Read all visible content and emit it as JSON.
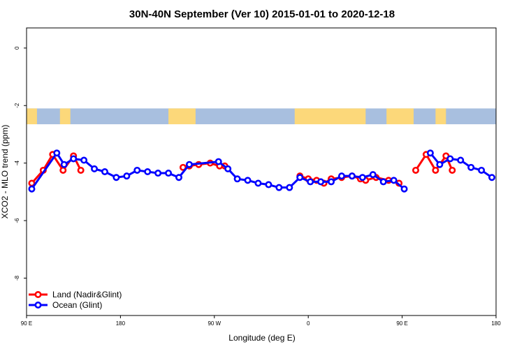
{
  "chart_data": {
    "type": "line",
    "title": "30N-40N September (Ver 10)   2015-01-01 to 2020-12-18",
    "xlabel": "Longitude (deg E)",
    "ylabel": "XCO2 - MLO trend (ppm)",
    "xlim": [
      90,
      540
    ],
    "ylim": [
      -9.3,
      0.7
    ],
    "x_ticks": [
      {
        "value": 90,
        "label": "90 E"
      },
      {
        "value": 180,
        "label": "180"
      },
      {
        "value": 270,
        "label": "90 W"
      },
      {
        "value": 360,
        "label": "0"
      },
      {
        "value": 450,
        "label": "90 E"
      },
      {
        "value": 540,
        "label": "180"
      }
    ],
    "y_ticks": [
      {
        "value": 0,
        "label": "0"
      },
      {
        "value": -2,
        "label": "-2"
      },
      {
        "value": -4,
        "label": "-4"
      },
      {
        "value": -6,
        "label": "-6"
      },
      {
        "value": -8,
        "label": "-8"
      }
    ],
    "map_strip": {
      "y_top": -2.1,
      "y_bottom": -2.65,
      "ocean_color": "#a8bfdf",
      "land_color": "#fcd87a"
    },
    "grid": false,
    "legend": "bottom-left",
    "series": [
      {
        "name": "Land (Nadir&Glint)",
        "color": "#ff0000",
        "segments": [
          [
            [
              95,
              -4.7
            ],
            [
              106,
              -4.25
            ],
            [
              115,
              -3.7
            ],
            [
              125,
              -4.25
            ],
            [
              135,
              -3.75
            ],
            [
              142,
              -4.25
            ]
          ],
          [
            [
              240,
              -4.15
            ],
            [
              246,
              -4.1
            ],
            [
              255,
              -4.05
            ],
            [
              266,
              -4.0
            ],
            [
              275,
              -4.1
            ],
            [
              280,
              -4.1
            ]
          ],
          [
            [
              352,
              -4.45
            ],
            [
              360,
              -4.55
            ],
            [
              368,
              -4.6
            ],
            [
              375,
              -4.7
            ],
            [
              382,
              -4.55
            ],
            [
              392,
              -4.5
            ],
            [
              402,
              -4.45
            ],
            [
              410,
              -4.55
            ],
            [
              415,
              -4.6
            ],
            [
              425,
              -4.5
            ],
            [
              437,
              -4.6
            ],
            [
              447,
              -4.7
            ]
          ],
          [
            [
              463,
              -4.25
            ],
            [
              473,
              -3.7
            ],
            [
              482,
              -4.25
            ],
            [
              492,
              -3.75
            ],
            [
              498,
              -4.25
            ]
          ]
        ]
      },
      {
        "name": "Ocean (Glint)",
        "color": "#0000ff",
        "segments": [
          [
            [
              95,
              -4.9
            ],
            [
              119,
              -3.65
            ],
            [
              126,
              -4.05
            ],
            [
              135,
              -3.85
            ],
            [
              145,
              -3.9
            ],
            [
              155,
              -4.2
            ],
            [
              165,
              -4.3
            ],
            [
              176,
              -4.5
            ],
            [
              186,
              -4.45
            ],
            [
              196,
              -4.25
            ],
            [
              206,
              -4.3
            ],
            [
              216,
              -4.35
            ],
            [
              226,
              -4.35
            ],
            [
              236,
              -4.5
            ],
            [
              246,
              -4.05
            ],
            [
              274,
              -3.95
            ],
            [
              283,
              -4.2
            ],
            [
              292,
              -4.55
            ],
            [
              302,
              -4.6
            ],
            [
              312,
              -4.7
            ],
            [
              322,
              -4.75
            ],
            [
              332,
              -4.85
            ],
            [
              342,
              -4.85
            ],
            [
              352,
              -4.5
            ],
            [
              362,
              -4.65
            ],
            [
              372,
              -4.65
            ],
            [
              382,
              -4.65
            ],
            [
              392,
              -4.45
            ],
            [
              402,
              -4.45
            ],
            [
              412,
              -4.5
            ],
            [
              422,
              -4.4
            ],
            [
              432,
              -4.65
            ],
            [
              442,
              -4.6
            ],
            [
              452,
              -4.9
            ]
          ],
          [
            [
              477,
              -3.65
            ],
            [
              486,
              -4.05
            ],
            [
              496,
              -3.85
            ],
            [
              506,
              -3.9
            ],
            [
              516,
              -4.15
            ],
            [
              526,
              -4.25
            ],
            [
              536,
              -4.5
            ]
          ]
        ]
      }
    ]
  }
}
